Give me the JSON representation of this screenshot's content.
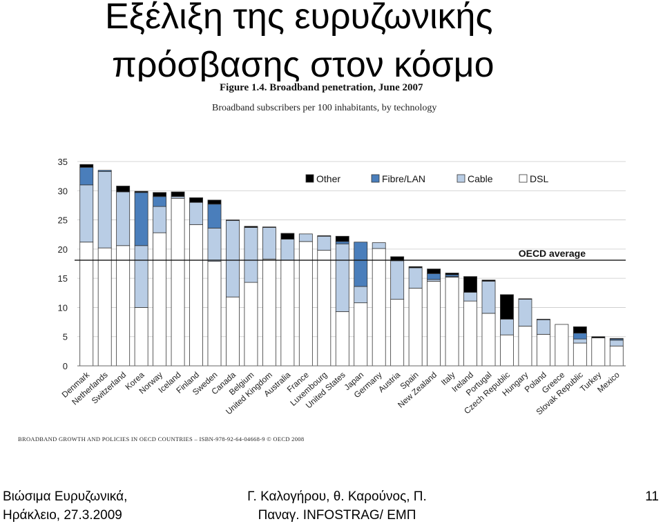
{
  "slide": {
    "title_line1": "Εξέλιξη της ευρυζωνικής",
    "title_line2": "πρόσβασης στον κόσμο"
  },
  "footer": {
    "left_line1": "Βιώσιμα Ευρυζωνικά,",
    "left_line2": "Ηράκλειο, 27.3.2009",
    "center_line1": "Γ. Καλογήρου,  θ. Καρούνος, Π.",
    "center_line2": "Παναγ. INFOSTRAG/ ΕΜΠ",
    "page_number": "11"
  },
  "source_text": "BROADBAND GROWTH AND POLICIES IN OECD COUNTRIES – ISBN-978-92-64-04668-9 © OECD 2008",
  "colors": {
    "other": "#000000",
    "fibre": "#4a7ebb",
    "cable": "#b9cde5",
    "dsl": "#ffffff",
    "outline": "#333333"
  },
  "chart_data": {
    "type": "bar",
    "stacked": true,
    "title": "Figure 1.4. Broadband penetration, June 2007",
    "subtitle": "Broadband subscribers per 100 inhabitants, by technology",
    "xlabel": "",
    "ylabel": "",
    "ylim": [
      0,
      35
    ],
    "yticks": [
      "0",
      "5",
      "10",
      "15",
      "20",
      "25",
      "30",
      "35"
    ],
    "grid": true,
    "legend": "top-right",
    "reference_line": {
      "label": "OECD average",
      "value": 18.1
    },
    "categories": [
      "Denmark",
      "Netherlands",
      "Switzerland",
      "Korea",
      "Norway",
      "Iceland",
      "Finland",
      "Sweden",
      "Canada",
      "Belgium",
      "United Kingdom",
      "Australia",
      "France",
      "Luxembourg",
      "United States",
      "Japan",
      "Germany",
      "Austria",
      "Spain",
      "New Zealand",
      "Italy",
      "Ireland",
      "Portugal",
      "Czech Republic",
      "Hungary",
      "Poland",
      "Greece",
      "Slovak Republic",
      "Turkey",
      "Mexico"
    ],
    "series": [
      {
        "name": "DSL",
        "values": [
          21.2,
          20.2,
          20.6,
          10.0,
          22.8,
          28.7,
          24.2,
          17.9,
          11.8,
          14.3,
          18.3,
          18.1,
          21.3,
          19.8,
          9.3,
          10.8,
          20.1,
          11.4,
          13.3,
          14.5,
          15.2,
          11.1,
          9.0,
          5.3,
          6.8,
          5.4,
          7.1,
          3.9,
          4.8,
          3.4
        ]
      },
      {
        "name": "Cable",
        "values": [
          9.8,
          13.1,
          9.2,
          10.6,
          4.5,
          0.3,
          3.8,
          5.7,
          13.1,
          9.4,
          5.4,
          3.6,
          1.3,
          2.4,
          11.6,
          2.8,
          1.0,
          6.6,
          3.5,
          0.3,
          0.1,
          1.5,
          5.5,
          2.7,
          4.6,
          2.5,
          0.0,
          0.7,
          0.0,
          1.0
        ]
      },
      {
        "name": "Fibre/LAN",
        "values": [
          3.0,
          0.2,
          0.0,
          9.1,
          1.7,
          0.0,
          0.0,
          4.1,
          0.0,
          0.0,
          0.0,
          0.0,
          0.0,
          0.0,
          0.4,
          7.6,
          0.0,
          0.0,
          0.0,
          1.0,
          0.3,
          0.0,
          0.0,
          0.0,
          0.0,
          0.0,
          0.0,
          1.0,
          0.0,
          0.2
        ]
      },
      {
        "name": "Other",
        "values": [
          0.5,
          0.0,
          1.0,
          0.2,
          0.7,
          0.8,
          0.8,
          0.7,
          0.1,
          0.2,
          0.1,
          1.0,
          0.0,
          0.1,
          0.9,
          0.0,
          0.0,
          0.7,
          0.2,
          0.8,
          0.3,
          2.7,
          0.2,
          4.2,
          0.1,
          0.1,
          0.0,
          1.1,
          0.2,
          0.1
        ]
      }
    ]
  }
}
